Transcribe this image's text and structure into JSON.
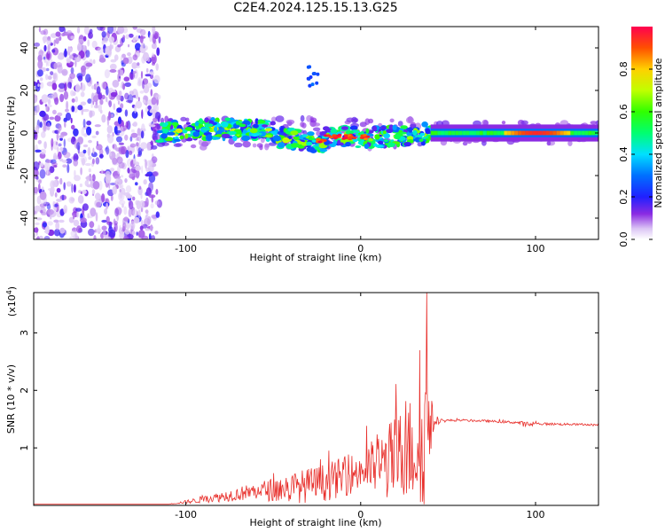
{
  "title": "C2E4.2024.125.15.13.G25",
  "chart_data": [
    {
      "type": "heatmap",
      "xlabel": "Height of straight line (km)",
      "ylabel": "Frequency (Hz)",
      "xlim": [
        -187,
        136
      ],
      "ylim": [
        -50,
        50
      ],
      "xticks": [
        -100,
        0,
        100
      ],
      "yticks": [
        40,
        20,
        0,
        -20,
        -40
      ],
      "colorbar": {
        "label": "Normalized spectral amplitude",
        "range": [
          0.0,
          1.0
        ],
        "ticks": [
          "0.0",
          "0.2",
          "0.4",
          "0.6",
          "0.8"
        ],
        "tick_values": [
          0.0,
          0.2,
          0.4,
          0.6,
          0.8
        ]
      },
      "segments": [
        {
          "x": [
            -187,
            -115
          ],
          "description": "noise",
          "amplitude": [
            0.0,
            0.2
          ]
        },
        {
          "x": [
            -115,
            40
          ],
          "description": "broadened ridge near 0 Hz",
          "amplitude": [
            0.2,
            1.0
          ]
        },
        {
          "x": [
            40,
            136
          ],
          "description": "narrow ridge at 0 Hz",
          "amplitude": [
            0.4,
            1.0
          ]
        }
      ]
    },
    {
      "type": "line",
      "xlabel": "Height of straight line (km)",
      "ylabel": "SNR (10 * v/v)",
      "yexponent_label": "(x10",
      "yexponent_sup": "4",
      "yexponent_close": ")",
      "xlim": [
        -187,
        136
      ],
      "ylim": [
        0,
        3.7
      ],
      "xticks": [
        -100,
        0,
        100
      ],
      "yticks": [
        1,
        2,
        3
      ],
      "line_color": "#e8302c",
      "envelope": {
        "x": [
          -187,
          -110,
          -100,
          -80,
          -60,
          -40,
          -20,
          0,
          10,
          20,
          30,
          36,
          38,
          42,
          50,
          70,
          90,
          95,
          100,
          120,
          136
        ],
        "base": [
          0.02,
          0.02,
          0.06,
          0.15,
          0.25,
          0.3,
          0.4,
          0.6,
          0.7,
          0.8,
          1.0,
          1.1,
          1.2,
          1.45,
          1.48,
          1.47,
          1.44,
          1.4,
          1.42,
          1.41,
          1.4
        ],
        "spread": [
          0.0,
          0.0,
          0.05,
          0.15,
          0.25,
          0.45,
          0.55,
          0.6,
          0.9,
          1.3,
          1.6,
          2.0,
          2.2,
          0.1,
          0.03,
          0.03,
          0.04,
          0.1,
          0.04,
          0.03,
          0.03
        ]
      }
    }
  ]
}
